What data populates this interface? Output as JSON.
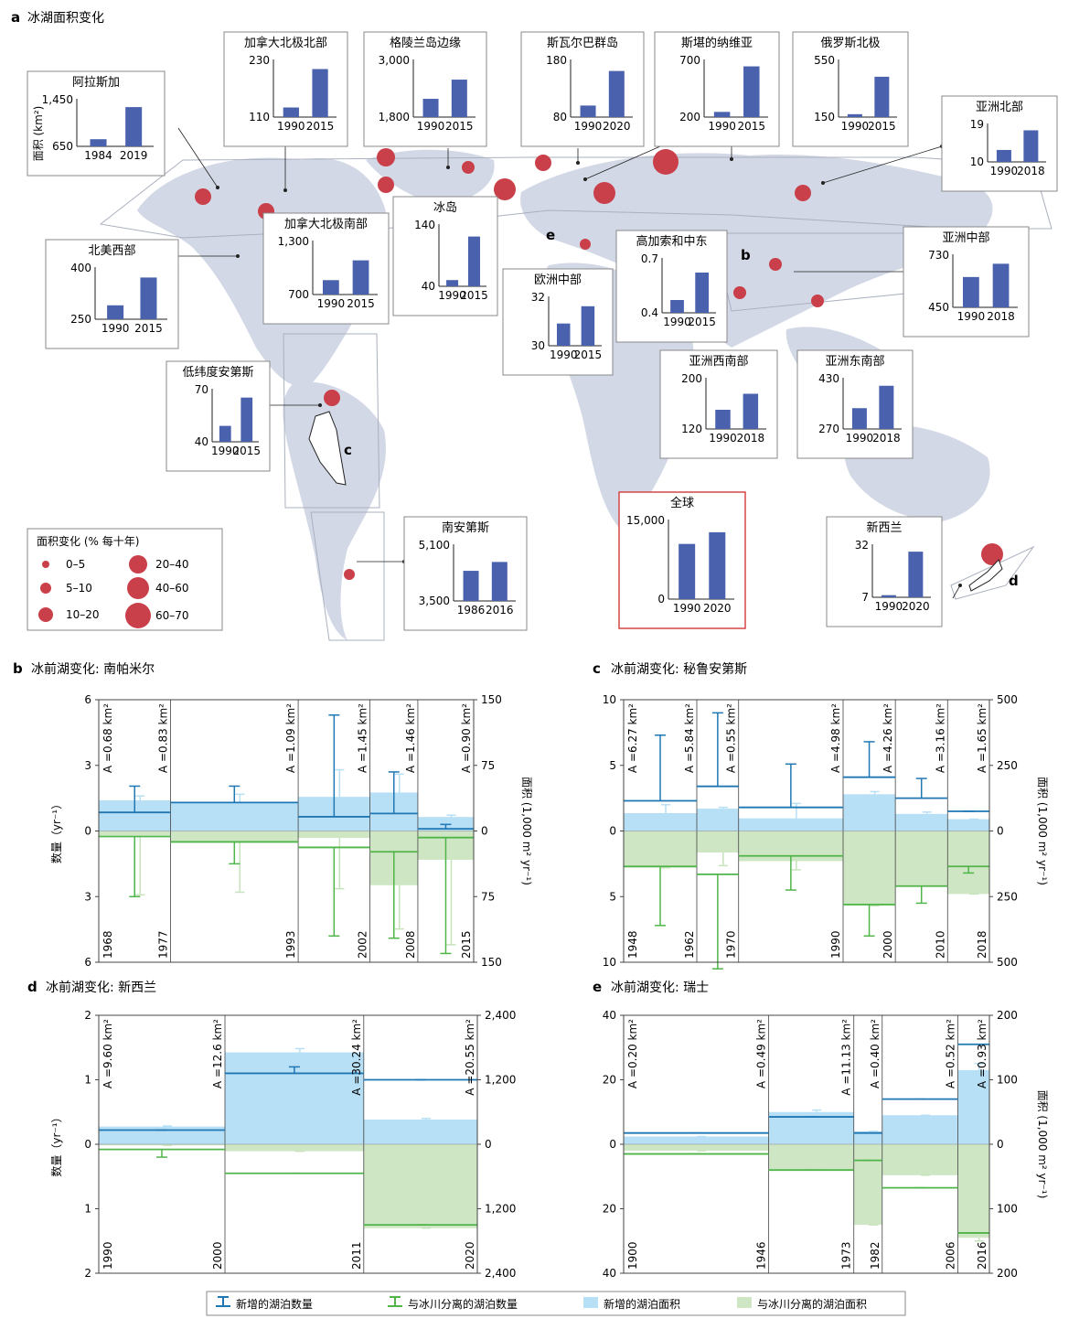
{
  "panel_a": {
    "letter": "a",
    "title": "冰湖面积变化",
    "ylabel": "面积 (km²)",
    "legend": {
      "title": "面积变化 (% 每十年)",
      "items": [
        "0–5",
        "5–10",
        "10–20",
        "20–40",
        "40–60",
        "60–70"
      ]
    },
    "map_letters": [
      "b",
      "c",
      "d",
      "e"
    ]
  },
  "chart_data": [
    {
      "type": "bar",
      "title": "阿拉斯加",
      "categories": [
        "1984",
        "2019"
      ],
      "values": [
        770,
        1310
      ],
      "ylim": [
        650,
        1450
      ],
      "yticks": [
        "1,450",
        "650"
      ]
    },
    {
      "type": "bar",
      "title": "加拿大北极北部",
      "categories": [
        "1990",
        "2015"
      ],
      "values": [
        130,
        210
      ],
      "ylim": [
        110,
        230
      ],
      "yticks": [
        "230",
        "110"
      ]
    },
    {
      "type": "bar",
      "title": "格陵兰岛边缘",
      "categories": [
        "1990",
        "2015"
      ],
      "values": [
        2180,
        2580
      ],
      "ylim": [
        1800,
        3000
      ],
      "yticks": [
        "3,000",
        "1,800"
      ]
    },
    {
      "type": "bar",
      "title": "斯瓦尔巴群岛",
      "categories": [
        "1990",
        "2020"
      ],
      "values": [
        100,
        160
      ],
      "ylim": [
        80,
        180
      ],
      "yticks": [
        "180",
        "80"
      ]
    },
    {
      "type": "bar",
      "title": "斯堪的纳维亚",
      "categories": [
        "1990",
        "2015"
      ],
      "values": [
        245,
        640
      ],
      "ylim": [
        200,
        700
      ],
      "yticks": [
        "700",
        "200"
      ]
    },
    {
      "type": "bar",
      "title": "俄罗斯北极",
      "categories": [
        "1990",
        "2015"
      ],
      "values": [
        170,
        430
      ],
      "ylim": [
        150,
        550
      ],
      "yticks": [
        "550",
        "150"
      ]
    },
    {
      "type": "bar",
      "title": "亚洲北部",
      "categories": [
        "1990",
        "2018"
      ],
      "values": [
        12.8,
        17.4
      ],
      "ylim": [
        10,
        19
      ],
      "yticks": [
        "19",
        "10"
      ]
    },
    {
      "type": "bar",
      "title": "北美西部",
      "categories": [
        "1990",
        "2015"
      ],
      "values": [
        290,
        370
      ],
      "ylim": [
        250,
        400
      ],
      "yticks": [
        "400",
        "250"
      ]
    },
    {
      "type": "bar",
      "title": "加拿大北极南部",
      "categories": [
        "1990",
        "2015"
      ],
      "values": [
        860,
        1080
      ],
      "ylim": [
        700,
        1300
      ],
      "yticks": [
        "1,300",
        "700"
      ]
    },
    {
      "type": "bar",
      "title": "冰岛",
      "categories": [
        "1990",
        "2015"
      ],
      "values": [
        50,
        120
      ],
      "ylim": [
        40,
        140
      ],
      "yticks": [
        "140",
        "40"
      ]
    },
    {
      "type": "bar",
      "title": "欧洲中部",
      "categories": [
        "1990",
        "2015"
      ],
      "values": [
        30.9,
        31.6
      ],
      "ylim": [
        30,
        32
      ],
      "yticks": [
        "32",
        "30"
      ]
    },
    {
      "type": "bar",
      "title": "高加索和中东",
      "categories": [
        "1990",
        "2015"
      ],
      "values": [
        0.47,
        0.62
      ],
      "ylim": [
        0.4,
        0.7
      ],
      "yticks": [
        "0.7",
        "0.4"
      ]
    },
    {
      "type": "bar",
      "title": "亚洲中部",
      "categories": [
        "1990",
        "2018"
      ],
      "values": [
        610,
        680
      ],
      "ylim": [
        450,
        730
      ],
      "yticks": [
        "730",
        "450"
      ]
    },
    {
      "type": "bar",
      "title": "亚洲西南部",
      "categories": [
        "1990",
        "2018"
      ],
      "values": [
        150,
        175
      ],
      "ylim": [
        120,
        200
      ],
      "yticks": [
        "200",
        "120"
      ]
    },
    {
      "type": "bar",
      "title": "亚洲东南部",
      "categories": [
        "1990",
        "2018"
      ],
      "values": [
        335,
        405
      ],
      "ylim": [
        270,
        430
      ],
      "yticks": [
        "430",
        "270"
      ]
    },
    {
      "type": "bar",
      "title": "低纬度安第斯",
      "categories": [
        "1990",
        "2015"
      ],
      "values": [
        49,
        65
      ],
      "ylim": [
        40,
        70
      ],
      "yticks": [
        "70",
        "40"
      ]
    },
    {
      "type": "bar",
      "title": "南安第斯",
      "categories": [
        "1986",
        "2016"
      ],
      "values": [
        4350,
        4600
      ],
      "ylim": [
        3500,
        5100
      ],
      "yticks": [
        "5,100",
        "3,500"
      ]
    },
    {
      "type": "bar",
      "title": "全球",
      "categories": [
        "1990",
        "2020"
      ],
      "values": [
        10400,
        12600
      ],
      "ylim": [
        0,
        15000
      ],
      "yticks": [
        "15,000",
        "0"
      ]
    },
    {
      "type": "bar",
      "title": "新西兰",
      "categories": [
        "1990",
        "2020"
      ],
      "values": [
        8,
        28.5
      ],
      "ylim": [
        7,
        32
      ],
      "yticks": [
        "32",
        "7"
      ]
    },
    {
      "type": "step-area",
      "letter": "b",
      "title": "冰前湖变化: 南帕米尔",
      "ylabel_left": "数量（yr⁻¹）",
      "ylabel_right": "面积 (1,000 m² yr⁻¹)",
      "left_ticks": [
        "6",
        "3",
        "0",
        "3",
        "6"
      ],
      "right_ticks": [
        "150",
        "75",
        "0",
        "75",
        "150"
      ],
      "left_max": 6,
      "right_max": 150,
      "x": [
        1968,
        1977,
        1993,
        2002,
        2008,
        2015
      ],
      "x_labels": [
        "1968",
        "1977",
        "1993",
        "2002",
        "2008",
        "2015"
      ],
      "area_labels": [
        "A =0.68 km²",
        "A =0.83 km²",
        "A =1.09 km²",
        "A =1.45 km²",
        "A =1.46 km²",
        "A =0.90 km²"
      ],
      "segments": [
        {
          "from": 1968,
          "to": 1977,
          "new_count": 0.85,
          "new_count_err": 2.05,
          "sep_count": 0.25,
          "sep_count_err": 3.0,
          "new_area": 35,
          "new_area_err": 40,
          "sep_area": 5,
          "sep_area_err": 73
        },
        {
          "from": 1977,
          "to": 1993,
          "new_count": 1.3,
          "new_count_err": 2.05,
          "sep_count": 0.5,
          "sep_count_err": 1.5,
          "new_area": 33,
          "new_area_err": 42,
          "sep_area": 12,
          "sep_area_err": 70
        },
        {
          "from": 1993,
          "to": 2002,
          "new_count": 0.65,
          "new_count_err": 5.3,
          "sep_count": 0.75,
          "sep_count_err": 4.8,
          "new_area": 39,
          "new_area_err": 70,
          "sep_area": 8,
          "sep_area_err": 66
        },
        {
          "from": 2002,
          "to": 2008,
          "new_count": 0.8,
          "new_count_err": 2.7,
          "sep_count": 0.95,
          "sep_count_err": 4.9,
          "new_area": 44,
          "new_area_err": 65,
          "sep_area": 62,
          "sep_area_err": 112
        },
        {
          "from": 2008,
          "to": 2015,
          "new_count": 0.1,
          "new_count_err": 0.3,
          "sep_count": 0.3,
          "sep_count_err": 5.6,
          "new_area": 16,
          "new_area_err": 18,
          "sep_area": 33,
          "sep_area_err": 130
        }
      ]
    },
    {
      "type": "step-area",
      "letter": "c",
      "title": "冰前湖变化: 秘鲁安第斯",
      "ylabel_left": "",
      "ylabel_right": "面积 (1,000 m² yr⁻¹)",
      "left_ticks": [
        "10",
        "5",
        "0",
        "5",
        "10"
      ],
      "right_ticks": [
        "500",
        "250",
        "0",
        "250",
        "500"
      ],
      "left_max": 10,
      "right_max": 500,
      "x": [
        1948,
        1962,
        1970,
        1990,
        2000,
        2010,
        2018
      ],
      "x_labels": [
        "1948",
        "1962",
        "1970",
        "1990",
        "2000",
        "2010",
        "2018"
      ],
      "area_labels": [
        "A =6.27 km²",
        "A =5.84 km²",
        "A =0.55 km²",
        "A =4.98 km²",
        "A =4.26 km²",
        "A =3.16 km²",
        "A =1.65 km²"
      ],
      "segments": [
        {
          "from": 1948,
          "to": 1962,
          "new_count": 2.3,
          "new_count_err": 7.3,
          "sep_count": 2.7,
          "sep_count_err": 7.2,
          "new_area": 68,
          "new_area_err": 100,
          "sep_area": 140,
          "sep_area_err": 140
        },
        {
          "from": 1962,
          "to": 1970,
          "new_count": 3.4,
          "new_count_err": 9.0,
          "sep_count": 3.3,
          "sep_count_err": 10.5,
          "new_area": 85,
          "new_area_err": 90,
          "sep_area": 82,
          "sep_area_err": 132
        },
        {
          "from": 1970,
          "to": 1990,
          "new_count": 1.8,
          "new_count_err": 5.1,
          "sep_count": 1.9,
          "sep_count_err": 4.5,
          "new_area": 48,
          "new_area_err": 105,
          "sep_area": 115,
          "sep_area_err": 148
        },
        {
          "from": 1990,
          "to": 2000,
          "new_count": 4.1,
          "new_count_err": 6.8,
          "sep_count": 5.6,
          "sep_count_err": 8.0,
          "new_area": 140,
          "new_area_err": 150,
          "sep_area": 285,
          "sep_area_err": 285
        },
        {
          "from": 2000,
          "to": 2010,
          "new_count": 2.5,
          "new_count_err": 4.0,
          "sep_count": 4.2,
          "sep_count_err": 5.5,
          "new_area": 65,
          "new_area_err": 72,
          "sep_area": 210,
          "sep_area_err": 210
        },
        {
          "from": 2010,
          "to": 2018,
          "new_count": 1.5,
          "new_count_err": 1.5,
          "sep_count": 2.7,
          "sep_count_err": 3.2,
          "new_area": 45,
          "new_area_err": 45,
          "sep_area": 240,
          "sep_area_err": 240
        }
      ]
    },
    {
      "type": "step-area",
      "letter": "d",
      "title": "冰前湖变化: 新西兰",
      "ylabel_left": "数量（yr⁻¹）",
      "ylabel_right": "",
      "left_ticks": [
        "2",
        "1",
        "0",
        "1",
        "2"
      ],
      "right_ticks": [
        "2,400",
        "1,200",
        "0",
        "1,200",
        "2,400"
      ],
      "left_max": 2,
      "right_max": 2400,
      "x": [
        1990,
        2000,
        2011,
        2020
      ],
      "x_labels": [
        "1990",
        "2000",
        "2011",
        "2020"
      ],
      "area_labels": [
        "A =9.60 km²",
        "A =12.6 km²",
        "A =30.24 km²",
        "A =20.55 km²"
      ],
      "segments": [
        {
          "from": 1990,
          "to": 2000,
          "new_count": 0.22,
          "new_count_err": 0.22,
          "sep_count": 0.08,
          "sep_count_err": 0.2,
          "new_area": 330,
          "new_area_err": 340,
          "sep_area": 20,
          "sep_area_err": 20
        },
        {
          "from": 2000,
          "to": 2011,
          "new_count": 1.1,
          "new_count_err": 1.2,
          "sep_count": 0.45,
          "sep_count_err": 0.45,
          "new_area": 1710,
          "new_area_err": 1780,
          "sep_area": 130,
          "sep_area_err": 130
        },
        {
          "from": 2011,
          "to": 2020,
          "new_count": 1.0,
          "new_count_err": 1.0,
          "sep_count": 1.25,
          "sep_count_err": 1.25,
          "new_area": 460,
          "new_area_err": 480,
          "sep_area": 1560,
          "sep_area_err": 1560
        }
      ]
    },
    {
      "type": "step-area",
      "letter": "e",
      "title": "冰前湖变化: 瑞士",
      "ylabel_left": "",
      "ylabel_right": "面积 (1,000 m² yr⁻¹)",
      "left_ticks": [
        "40",
        "20",
        "0",
        "20",
        "40"
      ],
      "right_ticks": [
        "200",
        "100",
        "0",
        "100",
        "200"
      ],
      "left_max": 40,
      "right_max": 200,
      "x": [
        1900,
        1946,
        1973,
        1982,
        2006,
        2016
      ],
      "x_labels": [
        "1900",
        "1946",
        "1973",
        "1982",
        "2006",
        "2016"
      ],
      "area_labels": [
        "A =0.20 km²",
        "A =0.49 km²",
        "A =11.13  km²",
        "A =0.40 km²",
        "A =0.52 km²",
        "A =0.93 km²"
      ],
      "segments": [
        {
          "from": 1900,
          "to": 1946,
          "new_count": 3.5,
          "new_count_err": 3.5,
          "sep_count": 3.0,
          "sep_count_err": 3.0,
          "new_area": 12,
          "new_area_err": 12,
          "sep_area": 10,
          "sep_area_err": 10
        },
        {
          "from": 1946,
          "to": 1973,
          "new_count": 8.5,
          "new_count_err": 8.5,
          "sep_count": 8.0,
          "sep_count_err": 8.0,
          "new_area": 50,
          "new_area_err": 53,
          "sep_area": 40,
          "sep_area_err": 40
        },
        {
          "from": 1973,
          "to": 1982,
          "new_count": 3.5,
          "new_count_err": 3.5,
          "sep_count": 5.0,
          "sep_count_err": 5.0,
          "new_area": 20,
          "new_area_err": 20,
          "sep_area": 125,
          "sep_area_err": 125
        },
        {
          "from": 1982,
          "to": 2006,
          "new_count": 14.0,
          "new_count_err": 14.0,
          "sep_count": 13.5,
          "sep_count_err": 13.5,
          "new_area": 45,
          "new_area_err": 45,
          "sep_area": 48,
          "sep_area_err": 48
        },
        {
          "from": 2006,
          "to": 2016,
          "new_count": 31.0,
          "new_count_err": 31.0,
          "sep_count": 27.5,
          "sep_count_err": 27.5,
          "new_area": 115,
          "new_area_err": 125,
          "sep_area": 145,
          "sep_area_err": 150
        }
      ]
    }
  ],
  "legend_bottom": {
    "new_count": "新增的湖泊数量",
    "sep_count": "与冰川分离的湖泊数量",
    "new_area": "新增的湖泊面积",
    "sep_area": "与冰川分离的湖泊面积"
  },
  "colors": {
    "bar": "#4a62ad",
    "dot": "#c9404a",
    "map": "#d3d8e6",
    "new_line": "#1f77b4",
    "sep_line": "#4fb548",
    "new_fill": "#b7dff5",
    "sep_fill": "#cfe6c4",
    "global_border": "#d33a3a"
  }
}
